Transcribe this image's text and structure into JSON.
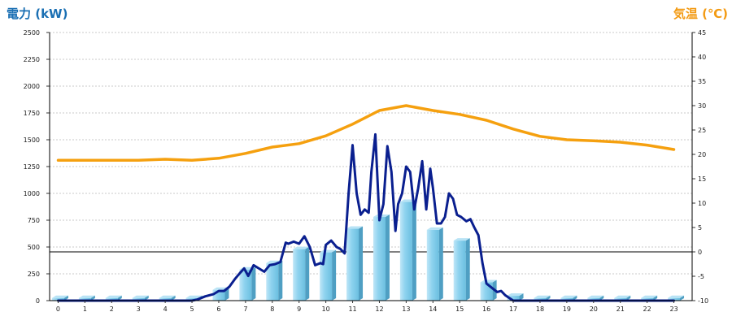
{
  "chart_data": {
    "type": "bar",
    "left_axis_title": "電力 (kW)",
    "right_axis_title": "気温 (℃)",
    "xlabel": "",
    "categories": [
      "0",
      "1",
      "2",
      "3",
      "4",
      "5",
      "6",
      "7",
      "8",
      "9",
      "10",
      "11",
      "12",
      "13",
      "14",
      "15",
      "16",
      "17",
      "18",
      "19",
      "20",
      "21",
      "22",
      "23"
    ],
    "ylim_left": [
      0,
      2500
    ],
    "yticks_left": [
      "0",
      "250",
      "500",
      "750",
      "1000",
      "1250",
      "1500",
      "1750",
      "2000",
      "2250",
      "2500"
    ],
    "ylim_right": [
      -10,
      45
    ],
    "yticks_right": [
      "-10",
      "-5",
      "0",
      "5",
      "10",
      "15",
      "20",
      "25",
      "30",
      "35",
      "40",
      "45"
    ],
    "grid": true,
    "series": [
      {
        "kind": "bar",
        "axis": "left",
        "color": "#87ceeb",
        "values": [
          25,
          25,
          25,
          25,
          25,
          25,
          100,
          290,
          350,
          480,
          450,
          670,
          780,
          920,
          660,
          560,
          170,
          45,
          25,
          25,
          25,
          25,
          25,
          25
        ]
      },
      {
        "kind": "line",
        "axis": "left",
        "color": "#0a1f8f",
        "x": [
          0,
          0.5,
          1,
          1.5,
          2,
          2.5,
          3,
          3.5,
          4,
          4.5,
          5,
          5.2,
          5.5,
          5.8,
          6,
          6.2,
          6.4,
          6.6,
          6.8,
          6.95,
          7.1,
          7.3,
          7.5,
          7.7,
          7.9,
          8.1,
          8.3,
          8.5,
          8.6,
          8.8,
          9.0,
          9.2,
          9.4,
          9.6,
          9.8,
          9.9,
          10.0,
          10.2,
          10.4,
          10.55,
          10.7,
          10.85,
          11.0,
          11.15,
          11.3,
          11.45,
          11.6,
          11.7,
          11.85,
          12.0,
          12.15,
          12.3,
          12.45,
          12.6,
          12.7,
          12.85,
          13.0,
          13.15,
          13.3,
          13.45,
          13.6,
          13.75,
          13.9,
          14.0,
          14.15,
          14.3,
          14.45,
          14.6,
          14.75,
          14.9,
          15.05,
          15.25,
          15.4,
          15.55,
          15.7,
          15.85,
          16.0,
          16.2,
          16.4,
          16.55,
          16.7,
          17,
          17.5,
          18,
          18.5,
          19,
          19.5,
          20,
          20.5,
          21,
          21.5,
          22,
          22.5,
          23
        ],
        "values": [
          0,
          0,
          0,
          0,
          0,
          0,
          0,
          0,
          0,
          0,
          0,
          10,
          40,
          60,
          90,
          90,
          130,
          200,
          260,
          300,
          230,
          330,
          300,
          270,
          330,
          340,
          360,
          540,
          530,
          550,
          530,
          600,
          500,
          330,
          350,
          340,
          520,
          560,
          500,
          480,
          440,
          1000,
          1450,
          1000,
          800,
          850,
          820,
          1200,
          1550,
          750,
          900,
          1440,
          1200,
          650,
          900,
          1000,
          1250,
          1200,
          850,
          1050,
          1300,
          850,
          1230,
          1050,
          720,
          720,
          780,
          1000,
          950,
          800,
          780,
          740,
          760,
          680,
          610,
          350,
          160,
          120,
          80,
          90,
          50,
          0,
          0,
          0,
          0,
          0,
          0,
          0,
          0,
          0,
          0,
          0,
          0,
          0
        ]
      },
      {
        "kind": "line",
        "axis": "right",
        "color": "#f5a00f",
        "x": [
          0,
          1,
          2,
          3,
          4,
          5,
          6,
          7,
          8,
          9,
          10,
          11,
          12,
          13,
          14,
          15,
          16,
          17,
          18,
          19,
          20,
          21,
          22,
          23
        ],
        "values": [
          18.8,
          18.8,
          18.8,
          18.8,
          19.0,
          18.8,
          19.2,
          20.2,
          21.5,
          22.2,
          23.8,
          26.2,
          29.0,
          30.0,
          29.0,
          28.2,
          27.0,
          25.2,
          23.7,
          23.0,
          22.8,
          22.5,
          21.9,
          21.0
        ]
      }
    ]
  }
}
